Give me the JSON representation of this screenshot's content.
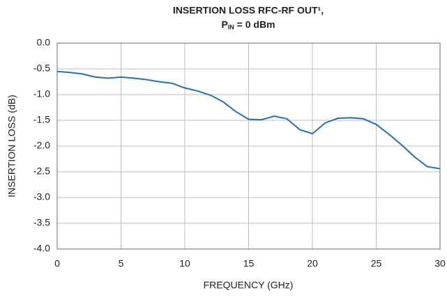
{
  "chart_data": {
    "type": "line",
    "title": "INSERTION LOSS RFC-RF OUT¹,",
    "subtitle": {
      "base": "P",
      "subscript": "IN",
      "rest": " = 0 dBm"
    },
    "xlabel": "FREQUENCY (GHz)",
    "ylabel": "INSERTION LOSS (dB)",
    "x": [
      0,
      1,
      2,
      3,
      4,
      5,
      6,
      7,
      8,
      9,
      10,
      11,
      12,
      13,
      14,
      15,
      16,
      17,
      18,
      19,
      20,
      21,
      22,
      23,
      24,
      25,
      26,
      27,
      28,
      29,
      30
    ],
    "series": [
      {
        "color": "#1f70b8",
        "values": [
          -0.55,
          -0.57,
          -0.6,
          -0.66,
          -0.68,
          -0.66,
          -0.68,
          -0.71,
          -0.75,
          -0.78,
          -0.87,
          -0.93,
          -1.01,
          -1.14,
          -1.33,
          -1.48,
          -1.49,
          -1.42,
          -1.47,
          -1.68,
          -1.76,
          -1.55,
          -1.46,
          -1.45,
          -1.47,
          -1.58,
          -1.77,
          -1.98,
          -2.21,
          -2.4,
          -2.44
        ]
      }
    ],
    "xlim": [
      0,
      30
    ],
    "xticks": [
      0,
      5,
      10,
      15,
      20,
      25,
      30
    ],
    "ylim": [
      -4,
      0
    ],
    "yticks": [
      {
        "value": 0,
        "label": "0.0"
      },
      -0.5,
      {
        "value": -1,
        "label": "-1.0"
      },
      -1.5,
      {
        "value": -2,
        "label": "-2.0"
      },
      -2.5,
      {
        "value": -3,
        "label": "-3.0"
      },
      -3.5,
      {
        "value": -4,
        "label": "-4.0"
      }
    ],
    "grid": true
  }
}
